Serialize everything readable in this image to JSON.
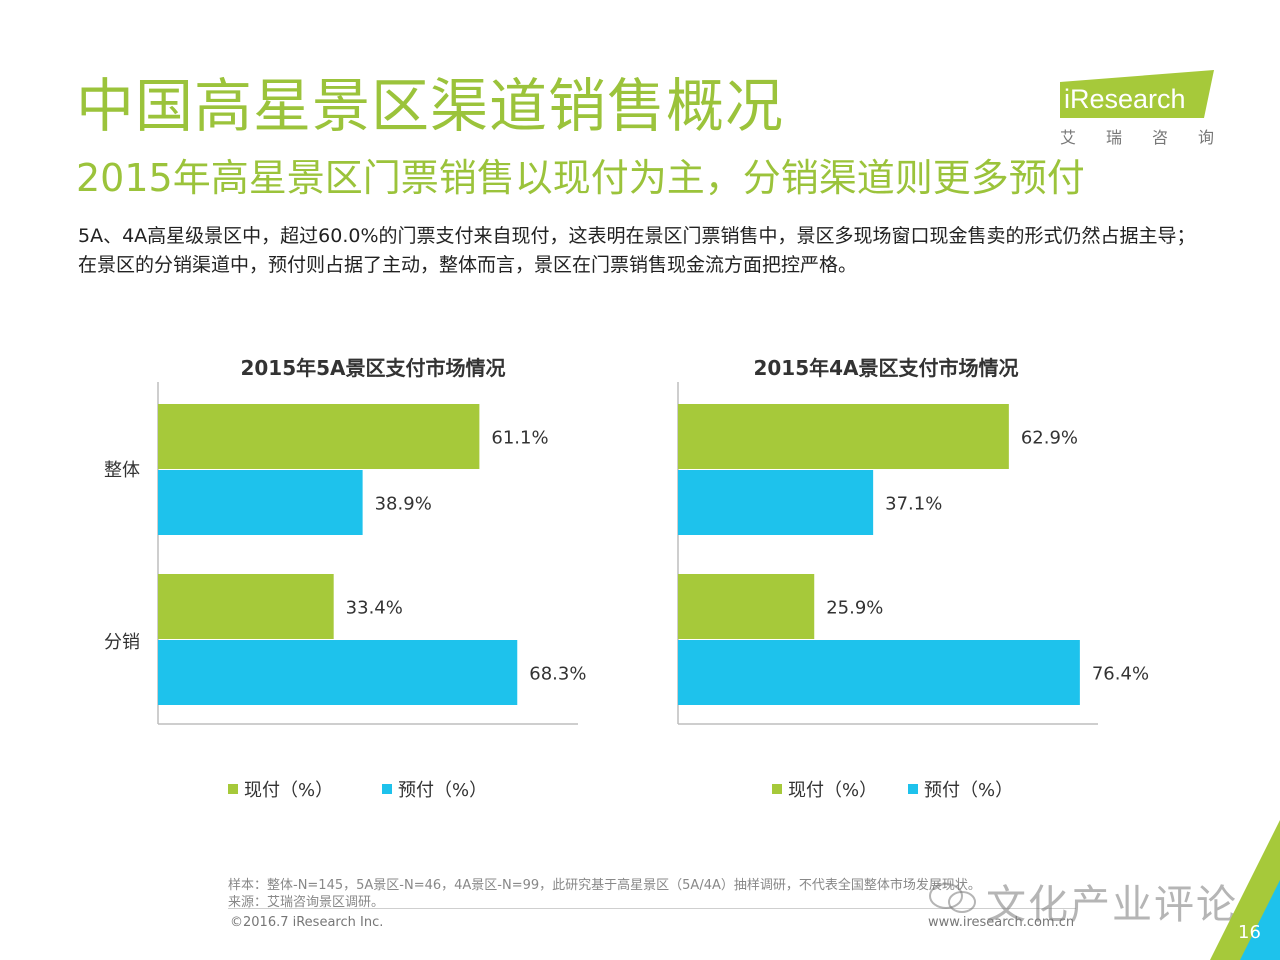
{
  "header": {
    "title": "中国高星景区渠道销售概况",
    "subtitle": "2015年高星景区门票销售以现付为主，分销渠道则更多预付",
    "intro": "5A、4A高星级景区中，超过60.0%的门票支付来自现付，这表明在景区门票销售中，景区多现场窗口现金售卖的形式仍然占据主导；在景区的分销渠道中，预付则占据了主动，整体而言，景区在门票销售现金流方面把控严格。"
  },
  "logo": {
    "brand": "iResearch",
    "cn_chars": [
      "艾",
      "瑞",
      "咨",
      "询"
    ]
  },
  "colors": {
    "accent": "#9bc33b",
    "xianfu": "#a6c93a",
    "yufu": "#1ec2ec"
  },
  "chart_data": [
    {
      "type": "bar",
      "orientation": "horizontal",
      "title": "2015年5A景区支付市场情况",
      "categories": [
        "整体",
        "分销"
      ],
      "series": [
        {
          "name": "现付（%）",
          "values": [
            61.1,
            33.4
          ],
          "labels": [
            "61.1%",
            "33.4%"
          ]
        },
        {
          "name": "预付（%）",
          "values": [
            38.9,
            68.3
          ],
          "labels": [
            "38.9%",
            "68.3%"
          ]
        }
      ],
      "xlim": [
        0,
        100
      ],
      "grid": false,
      "legend": "bottom"
    },
    {
      "type": "bar",
      "orientation": "horizontal",
      "title": "2015年4A景区支付市场情况",
      "categories": [
        "整体",
        "分销"
      ],
      "series": [
        {
          "name": "现付（%）",
          "values": [
            62.9,
            25.9
          ],
          "labels": [
            "62.9%",
            "25.9%"
          ]
        },
        {
          "name": "预付（%）",
          "values": [
            37.1,
            76.4
          ],
          "labels": [
            "37.1%",
            "76.4%"
          ]
        }
      ],
      "xlim": [
        0,
        100
      ],
      "grid": false,
      "legend": "bottom"
    }
  ],
  "footer": {
    "sample_note": "样本：整体-N=145，5A景区-N=46，4A景区-N=99，此研究基于高星景区（5A/4A）抽样调研，不代表全国整体市场发展现状。",
    "source_note": "来源：艾瑞咨询景区调研。",
    "copyright": "©2016.7 iResearch Inc.",
    "website": "www.iresearch.com.cn",
    "watermark": "文化产业评论",
    "page_number": "16"
  }
}
